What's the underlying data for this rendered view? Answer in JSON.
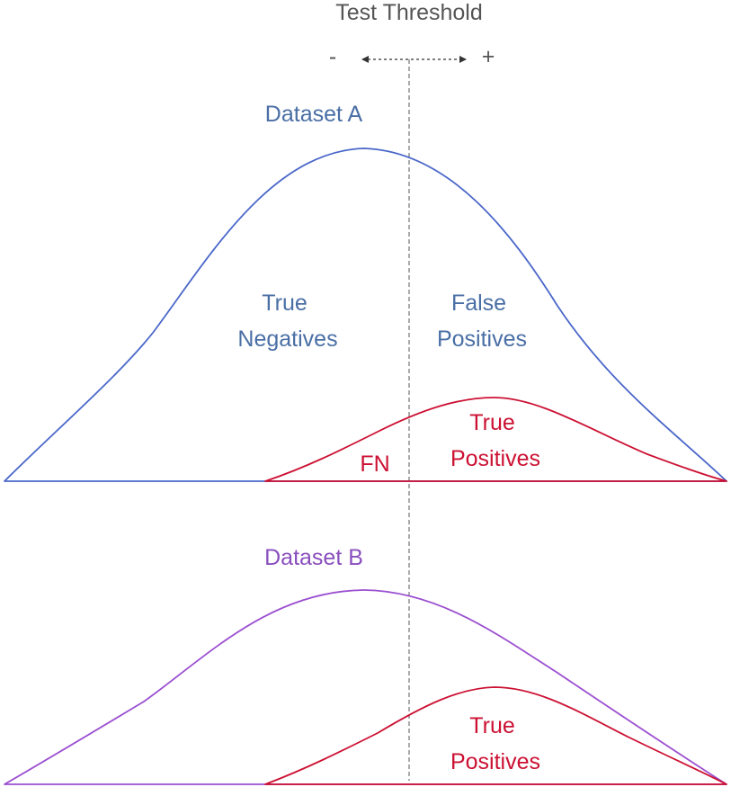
{
  "threshold": {
    "title": "Test Threshold",
    "minus_label": "-",
    "plus_label": "+"
  },
  "dataset_a": {
    "title": "Dataset A",
    "label_true_negatives": [
      "True",
      "Negatives"
    ],
    "label_false_positives": [
      "False",
      "Positives"
    ],
    "label_true_positives": [
      "True",
      "Positives"
    ],
    "label_fn": "FN"
  },
  "dataset_b": {
    "title": "Dataset B",
    "label_true_positives": [
      "True",
      "Positives"
    ]
  },
  "colors": {
    "dataset_a_curve": "#4a67c9",
    "dataset_a_text": "#4a6fa5",
    "dataset_b_curve": "#9b4fd0",
    "dataset_b_text": "#8a4fbe",
    "positive_curve": "#cc1133",
    "positive_text": "#cc1133",
    "threshold_line": "#555555",
    "threshold_text": "#555555"
  }
}
